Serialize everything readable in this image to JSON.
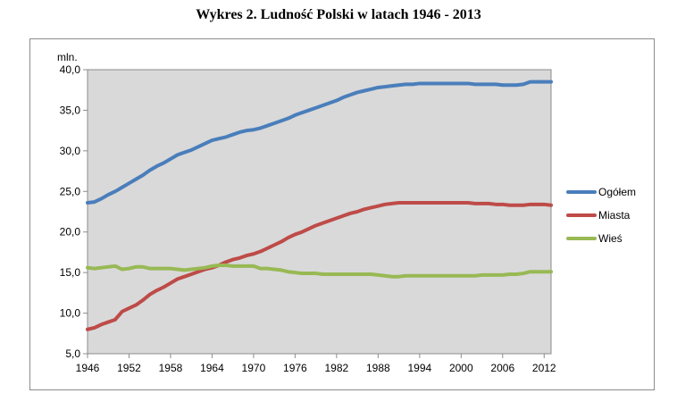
{
  "title": "Wykres 2. Ludność Polski w latach 1946 - 2013",
  "chart_data": {
    "type": "line",
    "title": "Wykres 2. Ludność Polski w latach 1946 - 2013",
    "ylabel": "mln.",
    "xlabel": "",
    "ylim": [
      5,
      40
    ],
    "yticks": [
      "5,0",
      "10,0",
      "15,0",
      "20,0",
      "25,0",
      "30,0",
      "35,0",
      "40,0"
    ],
    "xticks": [
      "1946",
      "1952",
      "1958",
      "1964",
      "1970",
      "1976",
      "1982",
      "1988",
      "1994",
      "2000",
      "2006",
      "2012"
    ],
    "xlim": [
      1946,
      2013
    ],
    "grid": false,
    "legend_position": "right",
    "series": [
      {
        "name": "Ogółem",
        "color": "#4A7EBB",
        "x": [
          1946,
          1947,
          1948,
          1949,
          1950,
          1951,
          1952,
          1953,
          1954,
          1955,
          1956,
          1957,
          1958,
          1959,
          1960,
          1961,
          1962,
          1963,
          1964,
          1965,
          1966,
          1967,
          1968,
          1969,
          1970,
          1971,
          1972,
          1973,
          1974,
          1975,
          1976,
          1977,
          1978,
          1979,
          1980,
          1981,
          1982,
          1983,
          1984,
          1985,
          1986,
          1987,
          1988,
          1989,
          1990,
          1991,
          1992,
          1993,
          1994,
          1995,
          1996,
          1997,
          1998,
          1999,
          2000,
          2001,
          2002,
          2003,
          2004,
          2005,
          2006,
          2007,
          2008,
          2009,
          2010,
          2011,
          2012,
          2013
        ],
        "y": [
          23.6,
          23.7,
          24.1,
          24.6,
          25.0,
          25.5,
          26.0,
          26.5,
          27.0,
          27.6,
          28.1,
          28.5,
          29.0,
          29.5,
          29.8,
          30.1,
          30.5,
          30.9,
          31.3,
          31.5,
          31.7,
          32.0,
          32.3,
          32.5,
          32.6,
          32.8,
          33.1,
          33.4,
          33.7,
          34.0,
          34.4,
          34.7,
          35.0,
          35.3,
          35.6,
          35.9,
          36.2,
          36.6,
          36.9,
          37.2,
          37.4,
          37.6,
          37.8,
          37.9,
          38.0,
          38.1,
          38.2,
          38.2,
          38.3,
          38.3,
          38.3,
          38.3,
          38.3,
          38.3,
          38.3,
          38.3,
          38.2,
          38.2,
          38.2,
          38.2,
          38.1,
          38.1,
          38.1,
          38.2,
          38.5,
          38.5,
          38.5,
          38.5
        ]
      },
      {
        "name": "Miasta",
        "color": "#BE4B48",
        "x": [
          1946,
          1947,
          1948,
          1949,
          1950,
          1951,
          1952,
          1953,
          1954,
          1955,
          1956,
          1957,
          1958,
          1959,
          1960,
          1961,
          1962,
          1963,
          1964,
          1965,
          1966,
          1967,
          1968,
          1969,
          1970,
          1971,
          1972,
          1973,
          1974,
          1975,
          1976,
          1977,
          1978,
          1979,
          1980,
          1981,
          1982,
          1983,
          1984,
          1985,
          1986,
          1987,
          1988,
          1989,
          1990,
          1991,
          1992,
          1993,
          1994,
          1995,
          1996,
          1997,
          1998,
          1999,
          2000,
          2001,
          2002,
          2003,
          2004,
          2005,
          2006,
          2007,
          2008,
          2009,
          2010,
          2011,
          2012,
          2013
        ],
        "y": [
          8.0,
          8.2,
          8.6,
          8.9,
          9.2,
          10.2,
          10.6,
          11.0,
          11.6,
          12.3,
          12.8,
          13.2,
          13.7,
          14.2,
          14.5,
          14.8,
          15.1,
          15.4,
          15.6,
          15.9,
          16.3,
          16.6,
          16.8,
          17.1,
          17.3,
          17.6,
          18.0,
          18.4,
          18.8,
          19.3,
          19.7,
          20.0,
          20.4,
          20.8,
          21.1,
          21.4,
          21.7,
          22.0,
          22.3,
          22.5,
          22.8,
          23.0,
          23.2,
          23.4,
          23.5,
          23.6,
          23.6,
          23.6,
          23.6,
          23.6,
          23.6,
          23.6,
          23.6,
          23.6,
          23.6,
          23.6,
          23.5,
          23.5,
          23.5,
          23.4,
          23.4,
          23.3,
          23.3,
          23.3,
          23.4,
          23.4,
          23.4,
          23.3
        ]
      },
      {
        "name": "Wieś",
        "color": "#98B954",
        "x": [
          1946,
          1947,
          1948,
          1949,
          1950,
          1951,
          1952,
          1953,
          1954,
          1955,
          1956,
          1957,
          1958,
          1959,
          1960,
          1961,
          1962,
          1963,
          1964,
          1965,
          1966,
          1967,
          1968,
          1969,
          1970,
          1971,
          1972,
          1973,
          1974,
          1975,
          1976,
          1977,
          1978,
          1979,
          1980,
          1981,
          1982,
          1983,
          1984,
          1985,
          1986,
          1987,
          1988,
          1989,
          1990,
          1991,
          1992,
          1993,
          1994,
          1995,
          1996,
          1997,
          1998,
          1999,
          2000,
          2001,
          2002,
          2003,
          2004,
          2005,
          2006,
          2007,
          2008,
          2009,
          2010,
          2011,
          2012,
          2013
        ],
        "y": [
          15.6,
          15.5,
          15.6,
          15.7,
          15.8,
          15.4,
          15.5,
          15.7,
          15.7,
          15.5,
          15.5,
          15.5,
          15.5,
          15.4,
          15.3,
          15.4,
          15.5,
          15.6,
          15.8,
          15.9,
          15.9,
          15.8,
          15.8,
          15.8,
          15.8,
          15.5,
          15.5,
          15.4,
          15.3,
          15.1,
          15.0,
          14.9,
          14.9,
          14.9,
          14.8,
          14.8,
          14.8,
          14.8,
          14.8,
          14.8,
          14.8,
          14.8,
          14.7,
          14.6,
          14.5,
          14.5,
          14.6,
          14.6,
          14.6,
          14.6,
          14.6,
          14.6,
          14.6,
          14.6,
          14.6,
          14.6,
          14.6,
          14.7,
          14.7,
          14.7,
          14.7,
          14.8,
          14.8,
          14.9,
          15.1,
          15.1,
          15.1,
          15.1
        ]
      }
    ]
  }
}
